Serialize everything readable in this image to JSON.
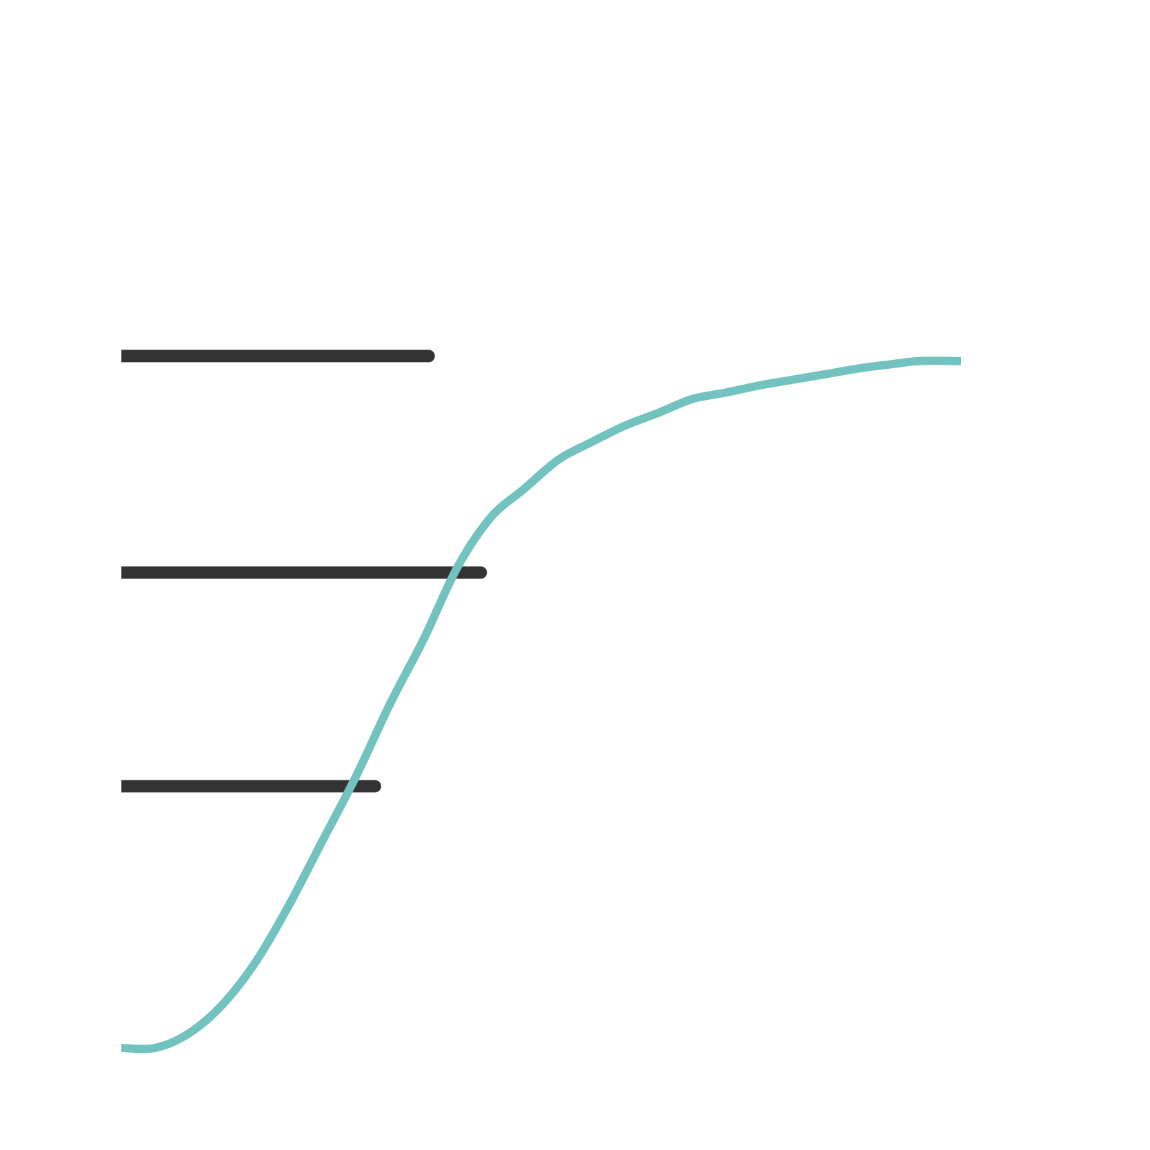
{
  "chart_data": {
    "type": "line",
    "title": "",
    "xlabel": "",
    "ylabel": "",
    "xlim": [
      0,
      100
    ],
    "ylim": [
      0,
      100
    ],
    "grid": false,
    "legend": "none",
    "colors": {
      "curve": "#72c3bf",
      "bars": "#333333"
    },
    "series": [
      {
        "type": "line",
        "x": [
          0,
          4,
          8,
          12,
          16,
          20,
          24,
          28,
          32,
          36,
          40,
          44,
          48,
          52,
          56,
          60,
          64,
          68,
          72,
          76,
          80,
          84,
          88,
          92,
          95,
          100
        ],
        "y": [
          0,
          0,
          2,
          6,
          12,
          20,
          29,
          38,
          48,
          57,
          67,
          74,
          78,
          82,
          84.5,
          86.8,
          88.6,
          90.5,
          91.4,
          92.4,
          93.2,
          94.0,
          94.8,
          95.4,
          95.8,
          95.8
        ]
      }
    ],
    "bars": [
      {
        "y": 96.5,
        "x_end": 36.6
      },
      {
        "y": 66.3,
        "x_end": 42.8
      },
      {
        "y": 36.5,
        "x_end": 30.2
      }
    ]
  }
}
